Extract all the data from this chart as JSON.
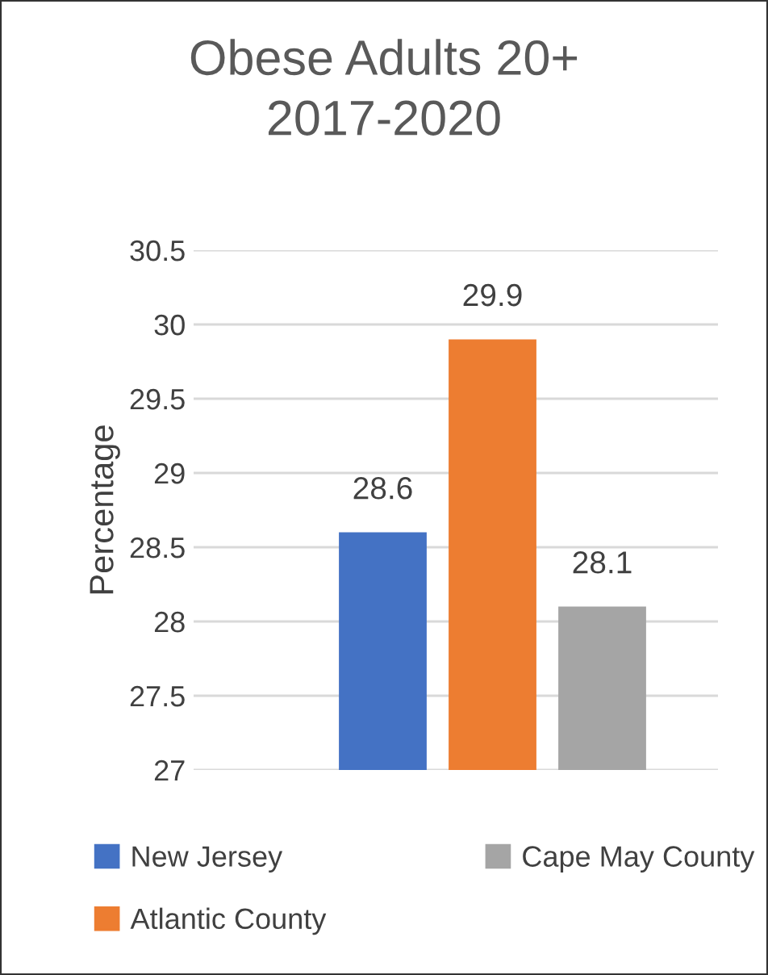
{
  "chart_data": {
    "type": "bar",
    "title": "Obese Adults 20+\n2017-2020",
    "ylabel": "Percentage",
    "categories": [
      null
    ],
    "series": [
      {
        "name": "New Jersey",
        "color": "#4472c4",
        "values": [
          28.6
        ]
      },
      {
        "name": "Atlantic County",
        "color": "#ed7d31",
        "values": [
          29.9
        ]
      },
      {
        "name": "Cape May County",
        "color": "#a5a5a5",
        "values": [
          28.1
        ]
      }
    ],
    "ylim": [
      27,
      30.5
    ],
    "yticks": [
      27,
      27.5,
      28,
      28.5,
      29,
      29.5,
      30,
      30.5
    ],
    "grid": "y",
    "legend": "bottom",
    "data_labels": true,
    "tick_labels": "y"
  }
}
